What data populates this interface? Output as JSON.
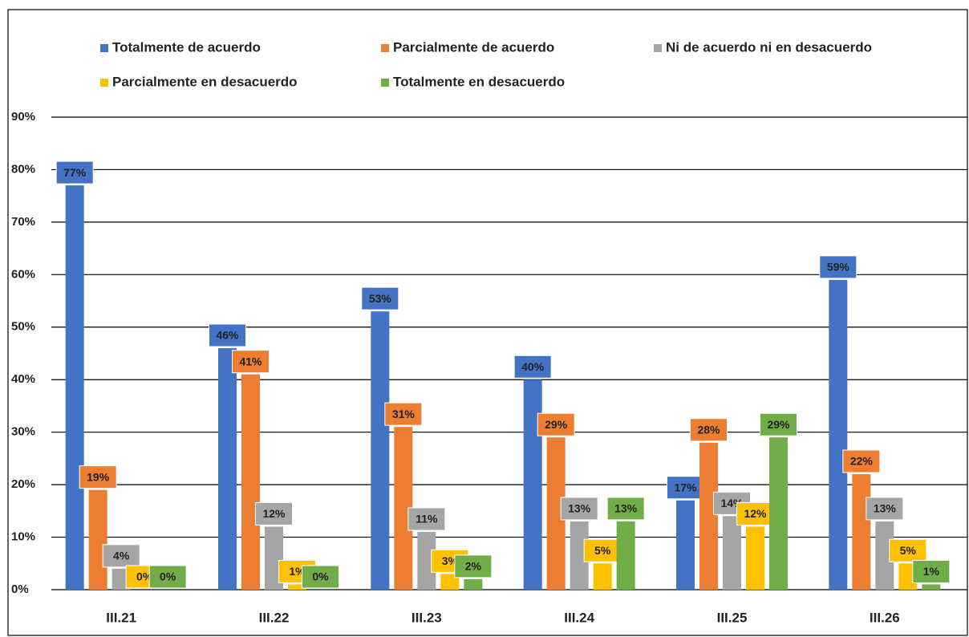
{
  "chart_data": {
    "type": "bar",
    "categories": [
      "III.21",
      "III.22",
      "III.23",
      "III.24",
      "III.25",
      "III.26"
    ],
    "series": [
      {
        "name": "Totalmente de acuerdo",
        "color": "#4472c4",
        "values": [
          77,
          46,
          53,
          40,
          17,
          59
        ],
        "value_labels": [
          "77%",
          "46%",
          "53%",
          "40%",
          "17%",
          "59%"
        ]
      },
      {
        "name": "Parcialmente de acuerdo",
        "color": "#ed7d31",
        "values": [
          19,
          41,
          31,
          29,
          28,
          22
        ],
        "value_labels": [
          "19%",
          "41%",
          "31%",
          "29%",
          "28%",
          "22%"
        ]
      },
      {
        "name": "Ni  de acuerdo ni en desacuerdo",
        "color": "#a5a5a5",
        "values": [
          4,
          12,
          11,
          13,
          14,
          13
        ],
        "value_labels": [
          "4%",
          "12%",
          "11%",
          "13%",
          "14%",
          "13%"
        ]
      },
      {
        "name": "Parcialmente en desacuerdo",
        "color": "#ffc000",
        "values": [
          0,
          1,
          3,
          5,
          12,
          5
        ],
        "value_labels": [
          "0%",
          "1%",
          "3%",
          "5%",
          "12%",
          "5%"
        ]
      },
      {
        "name": "Totalmente en desacuerdo",
        "color": "#70ad47",
        "values": [
          0,
          0,
          2,
          13,
          29,
          1
        ],
        "value_labels": [
          "0%",
          "0%",
          "2%",
          "13%",
          "29%",
          "1%"
        ]
      }
    ],
    "ylim": [
      0,
      90
    ],
    "yticks": [
      {
        "value": 0,
        "label": "0%"
      },
      {
        "value": 10,
        "label": "10%"
      },
      {
        "value": 20,
        "label": "20%"
      },
      {
        "value": 30,
        "label": "30%"
      },
      {
        "value": 40,
        "label": "40%"
      },
      {
        "value": 50,
        "label": "50%"
      },
      {
        "value": 60,
        "label": "60%"
      },
      {
        "value": 70,
        "label": "70%"
      },
      {
        "value": 80,
        "label": "80%"
      },
      {
        "value": 90,
        "label": "90%"
      }
    ],
    "grid": true,
    "legend": "top"
  }
}
